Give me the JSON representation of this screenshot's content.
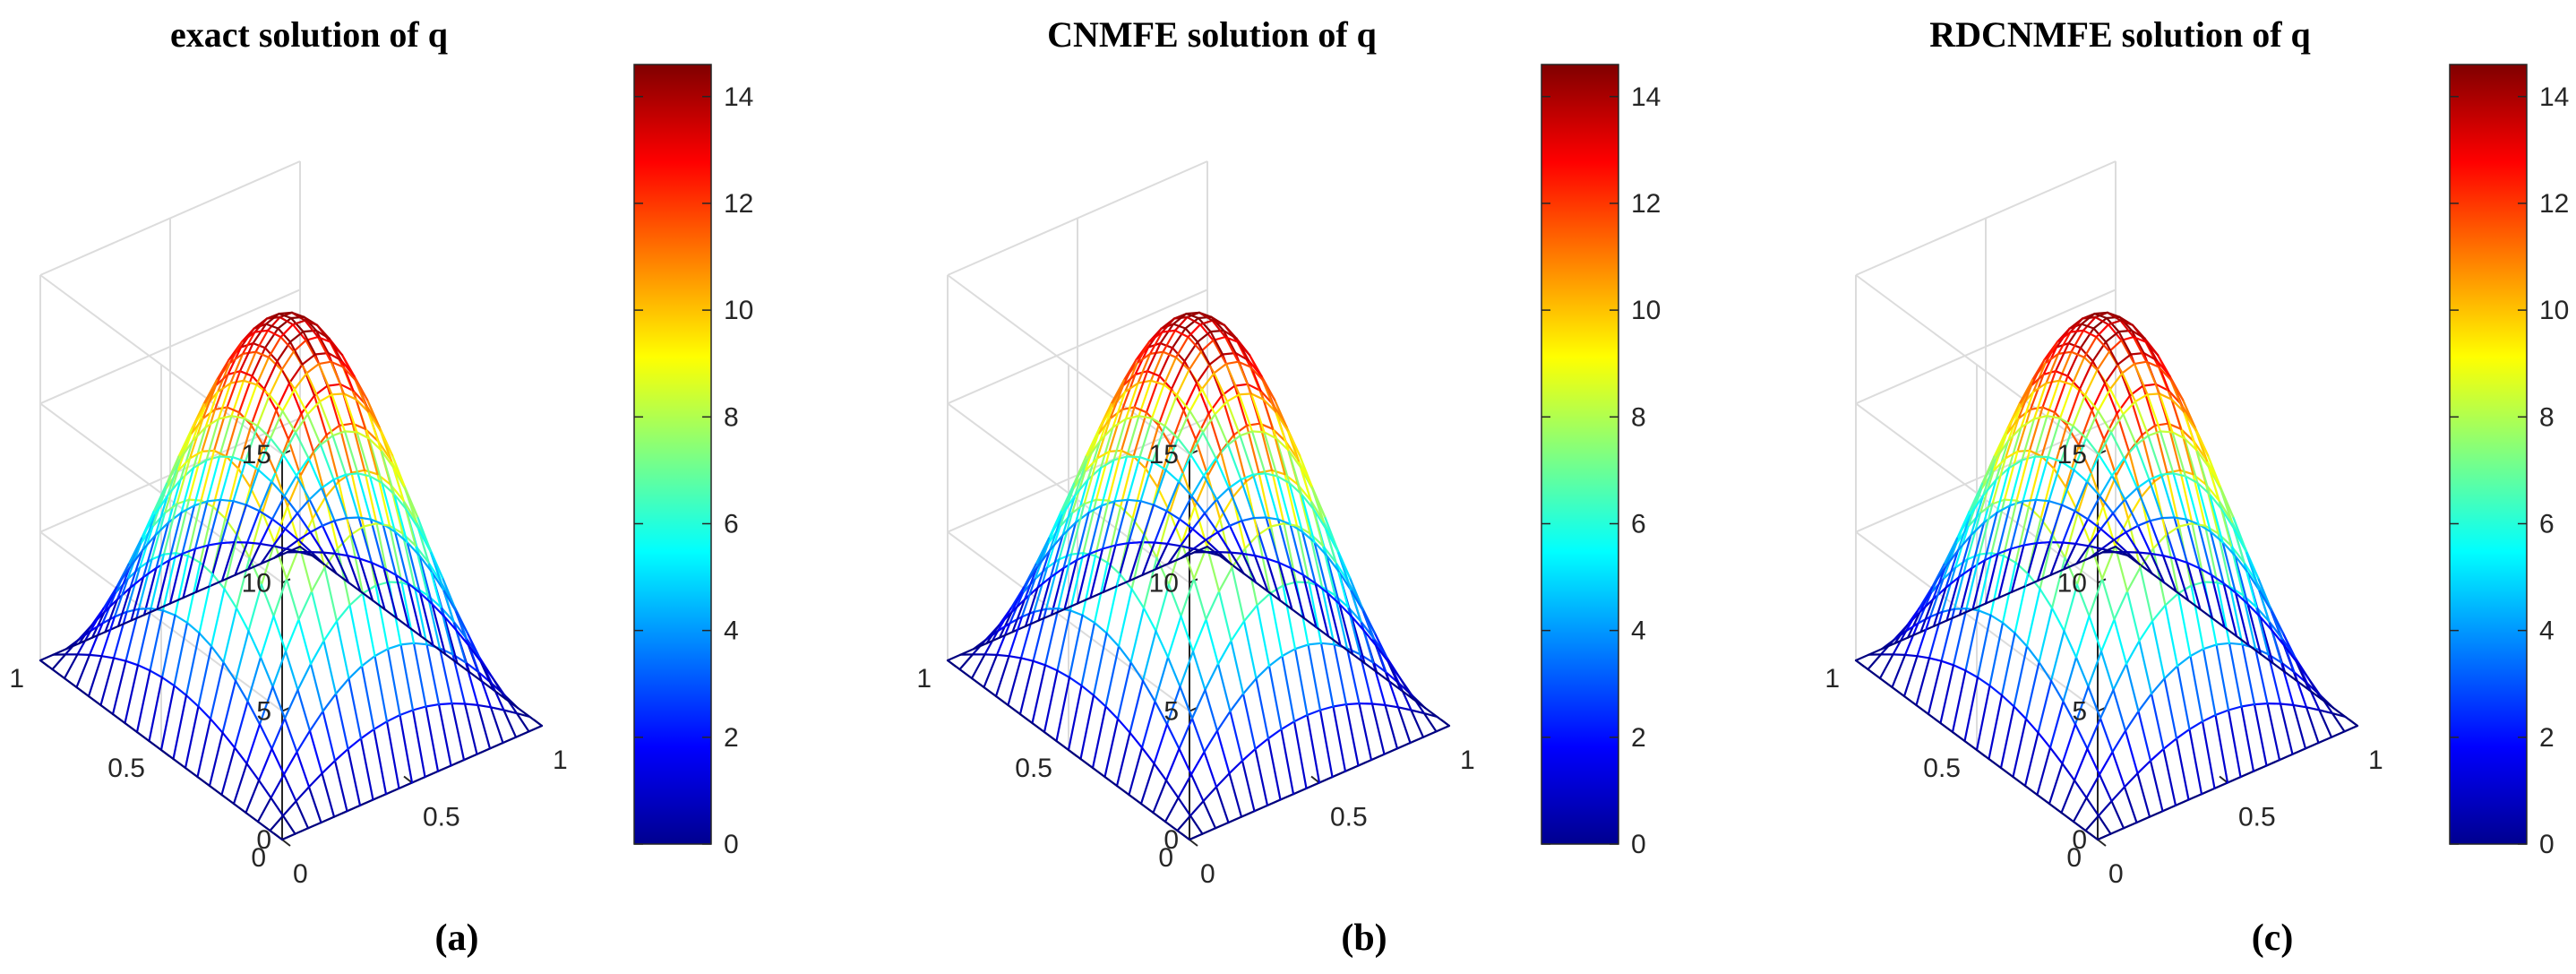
{
  "chart_data": [
    {
      "type": "surface",
      "title": "exact solution of q",
      "caption": "(a)",
      "function": "peak * sin(pi*x) * sin(pi*y)",
      "peak": 14.6,
      "grid_points": 21,
      "x_range": [
        0,
        1
      ],
      "y_range": [
        0,
        1
      ],
      "z_range": [
        0,
        15
      ],
      "x_ticks": [
        "0",
        "0.5",
        "1"
      ],
      "y_ticks": [
        "0",
        "0.5",
        "1"
      ],
      "z_ticks": [
        "0",
        "5",
        "10",
        "15"
      ],
      "colormap": "jet",
      "colorbar_range": [
        0,
        14.6
      ],
      "colorbar_ticks": [
        "0",
        "2",
        "4",
        "6",
        "8",
        "10",
        "12",
        "14"
      ]
    },
    {
      "type": "surface",
      "title": "CNMFE solution of q",
      "caption": "(b)",
      "function": "peak * sin(pi*x) * sin(pi*y)",
      "peak": 14.6,
      "grid_points": 21,
      "x_range": [
        0,
        1
      ],
      "y_range": [
        0,
        1
      ],
      "z_range": [
        0,
        15
      ],
      "x_ticks": [
        "0",
        "0.5",
        "1"
      ],
      "y_ticks": [
        "0",
        "0.5",
        "1"
      ],
      "z_ticks": [
        "0",
        "5",
        "10",
        "15"
      ],
      "colormap": "jet",
      "colorbar_range": [
        0,
        14.6
      ],
      "colorbar_ticks": [
        "0",
        "2",
        "4",
        "6",
        "8",
        "10",
        "12",
        "14"
      ]
    },
    {
      "type": "surface",
      "title": "RDCNMFE solution of q",
      "caption": "(c)",
      "function": "peak * sin(pi*x) * sin(pi*y)",
      "peak": 14.6,
      "grid_points": 21,
      "x_range": [
        0,
        1
      ],
      "y_range": [
        0,
        1
      ],
      "z_range": [
        0,
        15
      ],
      "x_ticks": [
        "0",
        "0.5",
        "1"
      ],
      "y_ticks": [
        "0",
        "0.5",
        "1"
      ],
      "z_ticks": [
        "0",
        "5",
        "10",
        "15"
      ],
      "colormap": "jet",
      "colorbar_range": [
        0,
        14.6
      ],
      "colorbar_ticks": [
        "0",
        "2",
        "4",
        "6",
        "8",
        "10",
        "12",
        "14"
      ]
    }
  ]
}
